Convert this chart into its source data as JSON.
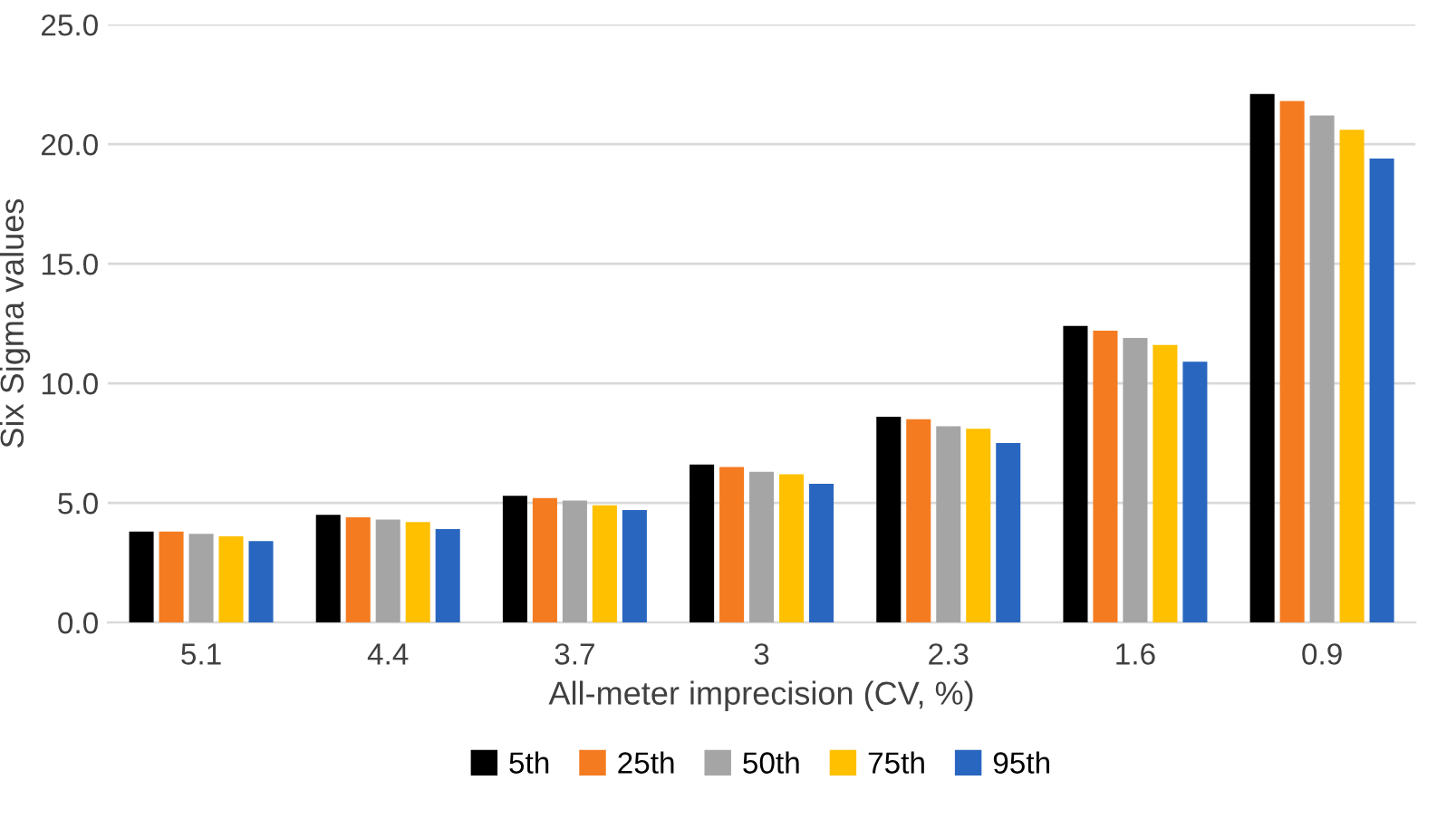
{
  "chart_data": {
    "type": "bar",
    "xlabel": "All-meter imprecision (CV, %)",
    "ylabel": "Six Sigma values",
    "categories": [
      "5.1",
      "4.4",
      "3.7",
      "3",
      "2.3",
      "1.6",
      "0.9"
    ],
    "series": [
      {
        "name": "5th",
        "color": "#000000",
        "values": [
          3.8,
          4.5,
          5.3,
          6.6,
          8.6,
          12.4,
          22.1
        ]
      },
      {
        "name": "25th",
        "color": "#f47b20",
        "values": [
          3.8,
          4.4,
          5.2,
          6.5,
          8.5,
          12.2,
          21.8
        ]
      },
      {
        "name": "50th",
        "color": "#a5a5a5",
        "values": [
          3.7,
          4.3,
          5.1,
          6.3,
          8.2,
          11.9,
          21.2
        ]
      },
      {
        "name": "75th",
        "color": "#ffc000",
        "values": [
          3.6,
          4.2,
          4.9,
          6.2,
          8.1,
          11.6,
          20.6
        ]
      },
      {
        "name": "95th",
        "color": "#2966c0",
        "values": [
          3.4,
          3.9,
          4.7,
          5.8,
          7.5,
          10.9,
          19.4
        ]
      }
    ],
    "ylim": [
      0,
      25
    ],
    "yticks": [
      {
        "value": 0,
        "label": "0.0"
      },
      {
        "value": 5,
        "label": "5.0"
      },
      {
        "value": 10,
        "label": "10.0"
      },
      {
        "value": 15,
        "label": "15.0"
      },
      {
        "value": 20,
        "label": "20.0"
      },
      {
        "value": 25,
        "label": "25.0"
      }
    ],
    "grid": "y",
    "legend": "bottom"
  }
}
